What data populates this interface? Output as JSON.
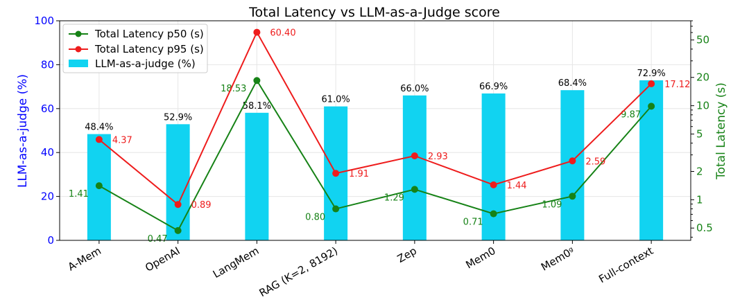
{
  "chart_data": {
    "type": "bar",
    "title": "Total Latency vs LLM-as-a-Judge score",
    "categories": [
      "A-Mem",
      "OpenAI",
      "LangMem",
      "RAG (K=2, 8192)",
      "Zep",
      "Mem0",
      "Mem0g",
      "Full-context"
    ],
    "category_display": [
      "A-Mem",
      "OpenAI",
      "LangMem",
      "RAG (K=2, 8192)",
      "Zep",
      "Mem0",
      "Mem0ᵍ",
      "Full-context"
    ],
    "bar_series": {
      "name": "LLM-as-a-judge (%)",
      "values": [
        48.4,
        52.9,
        58.1,
        61.0,
        66.0,
        66.9,
        68.4,
        72.9
      ],
      "labels": [
        "48.4%",
        "52.9%",
        "58.1%",
        "61.0%",
        "66.0%",
        "66.9%",
        "68.4%",
        "72.9%"
      ],
      "color": "#11d3f1"
    },
    "line_series": [
      {
        "name": "Total Latency p50 (s)",
        "values": [
          1.41,
          0.47,
          18.53,
          0.8,
          1.29,
          0.71,
          1.09,
          9.87
        ],
        "labels": [
          "1.41",
          "0.47",
          "18.53",
          "0.80",
          "1.29",
          "0.71",
          "1.09",
          "9.87"
        ],
        "color": "#168216"
      },
      {
        "name": "Total Latency p95 (s)",
        "values": [
          4.37,
          0.89,
          60.4,
          1.91,
          2.93,
          1.44,
          2.59,
          17.12
        ],
        "labels": [
          "4.37",
          "0.89",
          "60.40",
          "1.91",
          "2.93",
          "1.44",
          "2.59",
          "17.12"
        ],
        "color": "#ee1c1c"
      }
    ],
    "ylabel": "LLM-as-a-judge (%)",
    "ylim": [
      0,
      100
    ],
    "yticks": [
      "0",
      "20",
      "40",
      "60",
      "80",
      "100"
    ],
    "y2label": "Total Latency (s)",
    "y2_scale": "log",
    "y2lim": [
      0.37,
      80
    ],
    "y2ticks": [
      "0.5",
      "1",
      "2",
      "5",
      "10",
      "20",
      "50"
    ],
    "y2tick_values": [
      0.5,
      1,
      2,
      5,
      10,
      20,
      50
    ],
    "grid": true,
    "legend_position": "top-left",
    "colors": {
      "left_axis": "#0000ff",
      "right_axis": "#168216"
    }
  }
}
